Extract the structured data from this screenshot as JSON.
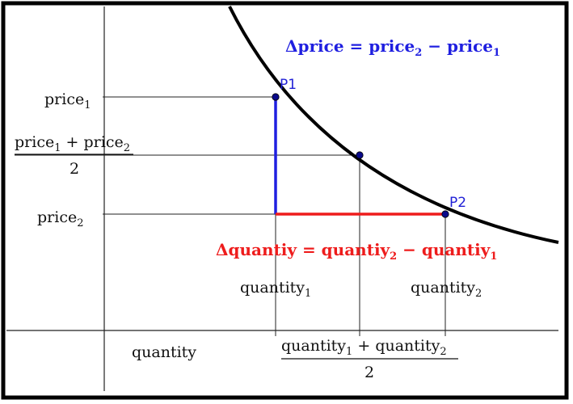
{
  "labels": {
    "price1_base": "price",
    "price1_sub": "1",
    "avg_price_num": "price",
    "avg_price_num_sub1": "1",
    "avg_price_plus": " + ",
    "avg_price_num2": "price",
    "avg_price_num_sub2": "2",
    "avg_price_den": "2",
    "price2_base": "price",
    "price2_sub": "2",
    "qty1_base": "quantity",
    "qty1_sub": "1",
    "qty2_base": "quantity",
    "qty2_sub": "2",
    "x_axis": "quantity",
    "avg_qty_num_a": "quantity",
    "avg_qty_sub1": "1",
    "avg_qty_plus": " + ",
    "avg_qty_num_b": "quantity",
    "avg_qty_sub2": "2",
    "avg_qty_den": "2",
    "p1": "P1",
    "p2": "P2"
  },
  "equations": {
    "dprice_lhs": "Δprice = price",
    "dprice_sub2": "2",
    "dprice_mid": " − price",
    "dprice_sub1": "1",
    "dqty_lhs": "Δquantiy = quantiy",
    "dqty_sub2": "2",
    "dqty_mid": " − quantiy",
    "dqty_sub1": "1"
  },
  "colors": {
    "curve": "#000000",
    "price_change": "#1f1fe0",
    "quantity_change": "#ee1c1c",
    "points": "#0a0a8a",
    "point_labels": "#1f1fd6"
  }
}
